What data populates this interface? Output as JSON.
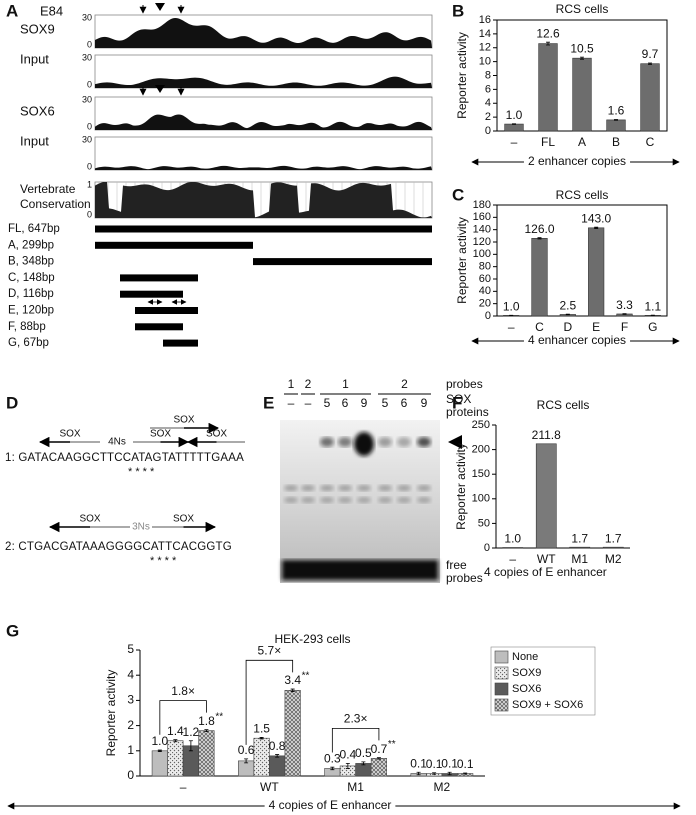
{
  "panel_a": {
    "label": "A",
    "sample": "E84",
    "tracks": [
      {
        "name": "SOX9",
        "ylim": [
          0,
          30
        ]
      },
      {
        "name": "Input",
        "ylim": [
          0,
          30
        ]
      },
      {
        "name": "SOX6",
        "ylim": [
          0,
          30
        ]
      },
      {
        "name": "Input",
        "ylim": [
          0,
          30
        ]
      }
    ],
    "conservation": {
      "name": [
        "Vertebrate",
        "Conservation"
      ],
      "ylim": [
        0,
        1
      ]
    },
    "fragments": [
      "FL, 647bp",
      "A, 299bp",
      "B, 348bp",
      "C, 148bp",
      "D, 116bp",
      "E, 120bp",
      "F, 88bp",
      "G, 67bp"
    ]
  },
  "panel_d": {
    "label": "D",
    "site": "SOX",
    "seq1": {
      "sequence": "1: GATACAAGGCTTCCATAGTATTTTTGAAA",
      "spacer": "4Ns",
      "stars": "*    *    *    *"
    },
    "seq2": {
      "sequence": "2: CTGACGATAAAGGGGCATTCACGGTG",
      "spacer": "3Ns",
      "stars": "*    *    *    *"
    }
  },
  "panel_e": {
    "label": "E",
    "probe_label": "probes",
    "probe_lanes": [
      "1",
      "2",
      "1",
      "2"
    ],
    "protein_label": [
      "SOX",
      "proteins"
    ],
    "protein_lanes": [
      "–",
      "–",
      "5",
      "6",
      "9",
      "5",
      "6",
      "9"
    ],
    "free_label": [
      "free",
      "probes"
    ]
  },
  "chart_data": [
    {
      "label": "B",
      "type": "bar",
      "title": "RCS cells",
      "y_label": "Reporter activity",
      "x_label": "2 enhancer copies",
      "categories": [
        "–",
        "FL",
        "A",
        "B",
        "C"
      ],
      "values": [
        1.0,
        12.6,
        10.5,
        1.6,
        9.7
      ],
      "value_labels": [
        "1.0",
        "12.6",
        "10.5",
        "1.6",
        "9.7"
      ],
      "errors": [
        0.05,
        0.2,
        0.15,
        0.05,
        0.1
      ],
      "color": "#6d6d6d",
      "ylim": [
        0,
        16
      ],
      "yticks": [
        0,
        2,
        4,
        6,
        8,
        10,
        12,
        14,
        16
      ]
    },
    {
      "label": "C",
      "type": "bar",
      "title": "RCS cells",
      "y_label": "Reporter activity",
      "x_label": "4 enhancer copies",
      "categories": [
        "–",
        "C",
        "D",
        "E",
        "F",
        "G"
      ],
      "values": [
        1.0,
        126.0,
        2.5,
        143.0,
        3.3,
        1.1
      ],
      "value_labels": [
        "1.0",
        "126.0",
        "2.5",
        "143.0",
        "3.3",
        "1.1"
      ],
      "errors": [
        0.2,
        1,
        0.4,
        1,
        0.6,
        0.2
      ],
      "color": "#6d6d6d",
      "ylim": [
        0,
        180
      ],
      "yticks": [
        0,
        20,
        40,
        60,
        80,
        100,
        120,
        140,
        160,
        180
      ]
    },
    {
      "label": "F",
      "type": "bar",
      "title": "RCS cells",
      "y_label": "Reporter activity",
      "x_label": "4 copies of E enhancer",
      "categories": [
        "–",
        "WT",
        "M1",
        "M2"
      ],
      "values": [
        1.0,
        211.8,
        1.7,
        1.7
      ],
      "value_labels": [
        "1.0",
        "211.8",
        "1.7",
        "1.7"
      ],
      "color": "#7a7a7a",
      "ylim": [
        0,
        250
      ],
      "yticks": [
        0,
        50,
        100,
        150,
        200,
        250
      ]
    },
    {
      "label": "G",
      "type": "grouped_bar",
      "title": "HEK-293 cells",
      "y_label": "Reporter activity",
      "x_label": "4 copies of E enhancer",
      "categories": [
        "–",
        "WT",
        "M1",
        "M2"
      ],
      "ylim": [
        0,
        5
      ],
      "yticks": [
        0,
        1,
        2,
        3,
        4,
        5
      ],
      "legend": "upper right",
      "series": [
        {
          "name": "None",
          "color": "#bdbdbd",
          "pattern": "none",
          "values": [
            1.0,
            0.6,
            0.3,
            0.1
          ],
          "value_labels": [
            "1.0",
            "0.6",
            "0.3",
            "0.1"
          ],
          "errors": [
            0.03,
            0.08,
            0.05,
            0.05
          ]
        },
        {
          "name": "SOX9",
          "color": "#ececec",
          "pattern": "dots",
          "values": [
            1.4,
            1.5,
            0.4,
            0.1
          ],
          "value_labels": [
            "1.4",
            "1.5",
            "0.4",
            "0.1"
          ],
          "errors": [
            0.04,
            0.03,
            0.1,
            0.03
          ]
        },
        {
          "name": "SOX6",
          "color": "#5a5a5a",
          "pattern": "none",
          "values": [
            1.2,
            0.8,
            0.5,
            0.1
          ],
          "value_labels": [
            "1.2",
            "0.8",
            "0.5",
            "0.1"
          ],
          "errors": [
            0.2,
            0.05,
            0.06,
            0.05
          ]
        },
        {
          "name": "SOX9 + SOX6",
          "color": "#dcdcdc",
          "pattern": "cross",
          "values": [
            1.8,
            3.4,
            0.7,
            0.1
          ],
          "value_labels": [
            "1.8",
            "3.4",
            "0.7",
            "0.1"
          ],
          "errors": [
            0.04,
            0.05,
            0.03,
            0.02
          ],
          "significance": [
            "**",
            "**",
            "**",
            null
          ]
        }
      ],
      "annotations": [
        {
          "text": "1.8×",
          "category": 0
        },
        {
          "text": "5.7×",
          "category": 1
        },
        {
          "text": "2.3×",
          "category": 2
        }
      ]
    }
  ]
}
